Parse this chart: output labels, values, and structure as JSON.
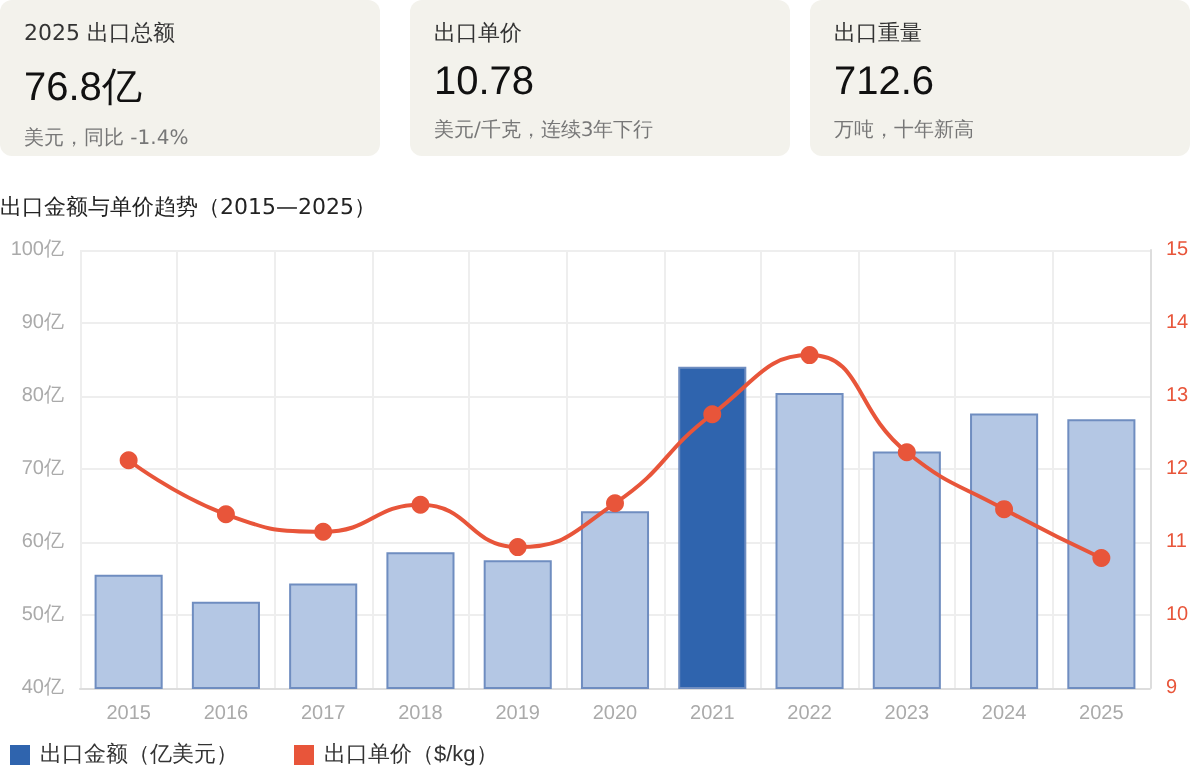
{
  "chart_data": [
    {
      "type": "other",
      "title": "2025 出口总额",
      "annotations": [
        "76.8亿",
        "美元，同比 -1.4%"
      ]
    },
    {
      "type": "other",
      "title": "出口单价",
      "annotations": [
        "10.78",
        "美元/千克，连续3年下行"
      ]
    },
    {
      "type": "other",
      "title": "出口重量",
      "annotations": [
        "712.6",
        "万吨，十年新高"
      ]
    },
    {
      "type": "bar",
      "title": "出口金额与单价趋势（2015—2025）",
      "categories": [
        "2015",
        "2016",
        "2017",
        "2018",
        "2019",
        "2020",
        "2021",
        "2022",
        "2023",
        "2024",
        "2025"
      ],
      "series": [
        {
          "name": "出口金额（亿美元）",
          "type": "bar",
          "color": "#2f64ae",
          "colors": [
            "#b4c7e4",
            "#b4c7e4",
            "#b4c7e4",
            "#b4c7e4",
            "#b4c7e4",
            "#b4c7e4",
            "#2f64ae",
            "#b4c7e4",
            "#b4c7e4",
            "#b4c7e4",
            "#b4c7e4"
          ],
          "values": [
            55.5,
            51.8,
            54.3,
            58.6,
            57.5,
            64.2,
            84.0,
            80.4,
            72.4,
            77.6,
            76.8
          ]
        },
        {
          "name": "出口单价（$/kg）",
          "type": "line",
          "axis": "y2",
          "color": "#e8553a",
          "marker": "circle",
          "values": [
            12.12,
            11.38,
            11.14,
            11.51,
            10.93,
            11.53,
            12.75,
            13.56,
            12.23,
            11.45,
            10.78
          ]
        }
      ],
      "ylim": [
        40,
        100
      ],
      "yticks": [
        {
          "value": 40,
          "label": "40亿"
        },
        {
          "value": 50,
          "label": "50亿"
        },
        {
          "value": 60,
          "label": "60亿"
        },
        {
          "value": 70,
          "label": "70亿"
        },
        {
          "value": 80,
          "label": "80亿"
        },
        {
          "value": 90,
          "label": "90亿"
        },
        {
          "value": 100,
          "label": "100亿"
        }
      ],
      "y2lim": [
        9,
        15
      ],
      "y2ticks": [
        9,
        10,
        11,
        12,
        13,
        14,
        15
      ],
      "grid": true,
      "legend": "bottom left"
    }
  ]
}
